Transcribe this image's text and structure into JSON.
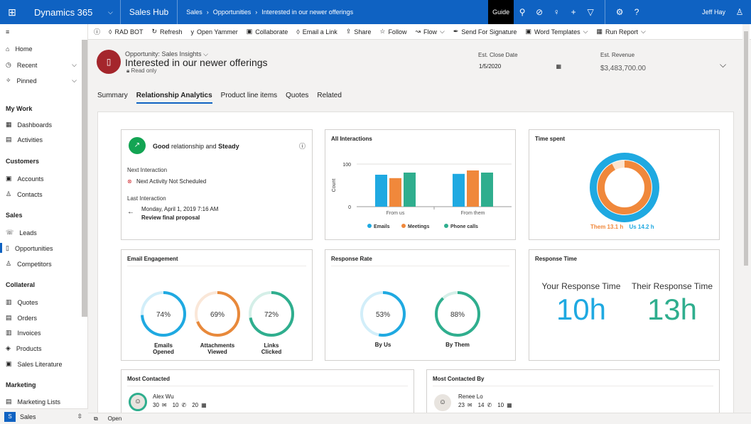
{
  "topbar": {
    "brand": "Dynamics 365",
    "app": "Sales Hub",
    "crumbs": [
      "Sales",
      "Opportunities",
      "Interested in our newer offerings"
    ],
    "guide": "Guide",
    "user": "Jeff Hay"
  },
  "commands": [
    "RAD BOT",
    "Refresh",
    "Open Yammer",
    "Collaborate",
    "Email a Link",
    "Share",
    "Follow",
    "Flow",
    "Send For Signature",
    "Word Templates",
    "Run Report"
  ],
  "sidebar": {
    "home": "Home",
    "recent": "Recent",
    "pinned": "Pinned",
    "groups": [
      {
        "title": "My Work",
        "items": [
          "Dashboards",
          "Activities"
        ]
      },
      {
        "title": "Customers",
        "items": [
          "Accounts",
          "Contacts"
        ]
      },
      {
        "title": "Sales",
        "items": [
          "Leads",
          "Opportunities",
          "Competitors"
        ]
      },
      {
        "title": "Collateral",
        "items": [
          "Quotes",
          "Orders",
          "Invoices",
          "Products",
          "Sales Literature"
        ]
      },
      {
        "title": "Marketing",
        "items": [
          "Marketing Lists"
        ]
      }
    ],
    "area": {
      "badge": "S",
      "label": "Sales"
    }
  },
  "record": {
    "type": "Opportunity: Sales Insights",
    "name": "Interested in our newer offerings",
    "readonly": "Read only",
    "close_label": "Est. Close Date",
    "close_value": "1/5/2020",
    "revenue_label": "Est. Revenue",
    "revenue_value": "$3,483,700.00"
  },
  "tabs": [
    "Summary",
    "Relationship Analytics",
    "Product line items",
    "Quotes",
    "Related"
  ],
  "relationship": {
    "good": "Good",
    "mid": "relationship and",
    "steady": "Steady",
    "next_label": "Next Interaction",
    "next_value": "Next Activity Not Scheduled",
    "last_label": "Last Interaction",
    "last_date": "Monday, April 1, 2019 7:16 AM",
    "last_subject": "Review final proposal"
  },
  "interactions": {
    "title": "All Interactions",
    "ylabel": "Count",
    "y100": "100",
    "y0": "0",
    "legend": [
      "Emails",
      "Meetings",
      "Phone calls"
    ]
  },
  "time_spent": {
    "title": "Time spent",
    "them": "Them 13.1 h",
    "us": "Us 14.2 h"
  },
  "email": {
    "title": "Email Engagement",
    "items": [
      {
        "value": "74%",
        "label1": "Emails",
        "label2": "Opened"
      },
      {
        "value": "69%",
        "label1": "Attachments",
        "label2": "Viewed"
      },
      {
        "value": "72%",
        "label1": "Links",
        "label2": "Clicked"
      }
    ]
  },
  "response_rate": {
    "title": "Response Rate",
    "items": [
      {
        "value": "53%",
        "label": "By Us"
      },
      {
        "value": "88%",
        "label": "By Them"
      }
    ]
  },
  "response_time": {
    "title": "Response Time",
    "your_label": "Your Response Time",
    "your_value": "10h",
    "their_label": "Their Response Time",
    "their_value": "13h"
  },
  "most_contacted": {
    "title": "Most Contacted",
    "name": "Alex Wu",
    "emails": "30",
    "calls": "10",
    "meetings": "20"
  },
  "most_contacted_by": {
    "title": "Most Contacted By",
    "name": "Renee Lo",
    "emails": "23",
    "calls": "14",
    "meetings": "10"
  },
  "status": {
    "open": "Open"
  },
  "chart_data": [
    {
      "type": "bar",
      "title": "All Interactions",
      "ylabel": "Count",
      "categories": [
        "From us",
        "From them"
      ],
      "series": [
        {
          "name": "Emails",
          "values": [
            75,
            77
          ]
        },
        {
          "name": "Meetings",
          "values": [
            67,
            85
          ]
        },
        {
          "name": "Phone calls",
          "values": [
            80,
            80
          ]
        }
      ],
      "ylim": [
        0,
        120
      ],
      "colors": [
        "#1fa9e1",
        "#f0883b",
        "#2fae8e"
      ]
    },
    {
      "type": "pie",
      "title": "Time spent",
      "categories": [
        "Them",
        "Us"
      ],
      "values": [
        13.1,
        14.2
      ],
      "colors": [
        "#f0883b",
        "#1fa9e1"
      ]
    }
  ],
  "rings": {
    "email": [
      0.74,
      0.69,
      0.72
    ],
    "email_colors": [
      "#1fa9e1",
      "#e8893b",
      "#2fae8e"
    ],
    "response": [
      0.53,
      0.88
    ],
    "response_colors": [
      "#1fa9e1",
      "#2fae8e"
    ]
  },
  "colors": {
    "accent": "#0f62c2",
    "good": "#13a453",
    "record": "#a4262c",
    "teal": "#2fae8e",
    "blue": "#1fa9e1",
    "orange": "#f0883b"
  }
}
